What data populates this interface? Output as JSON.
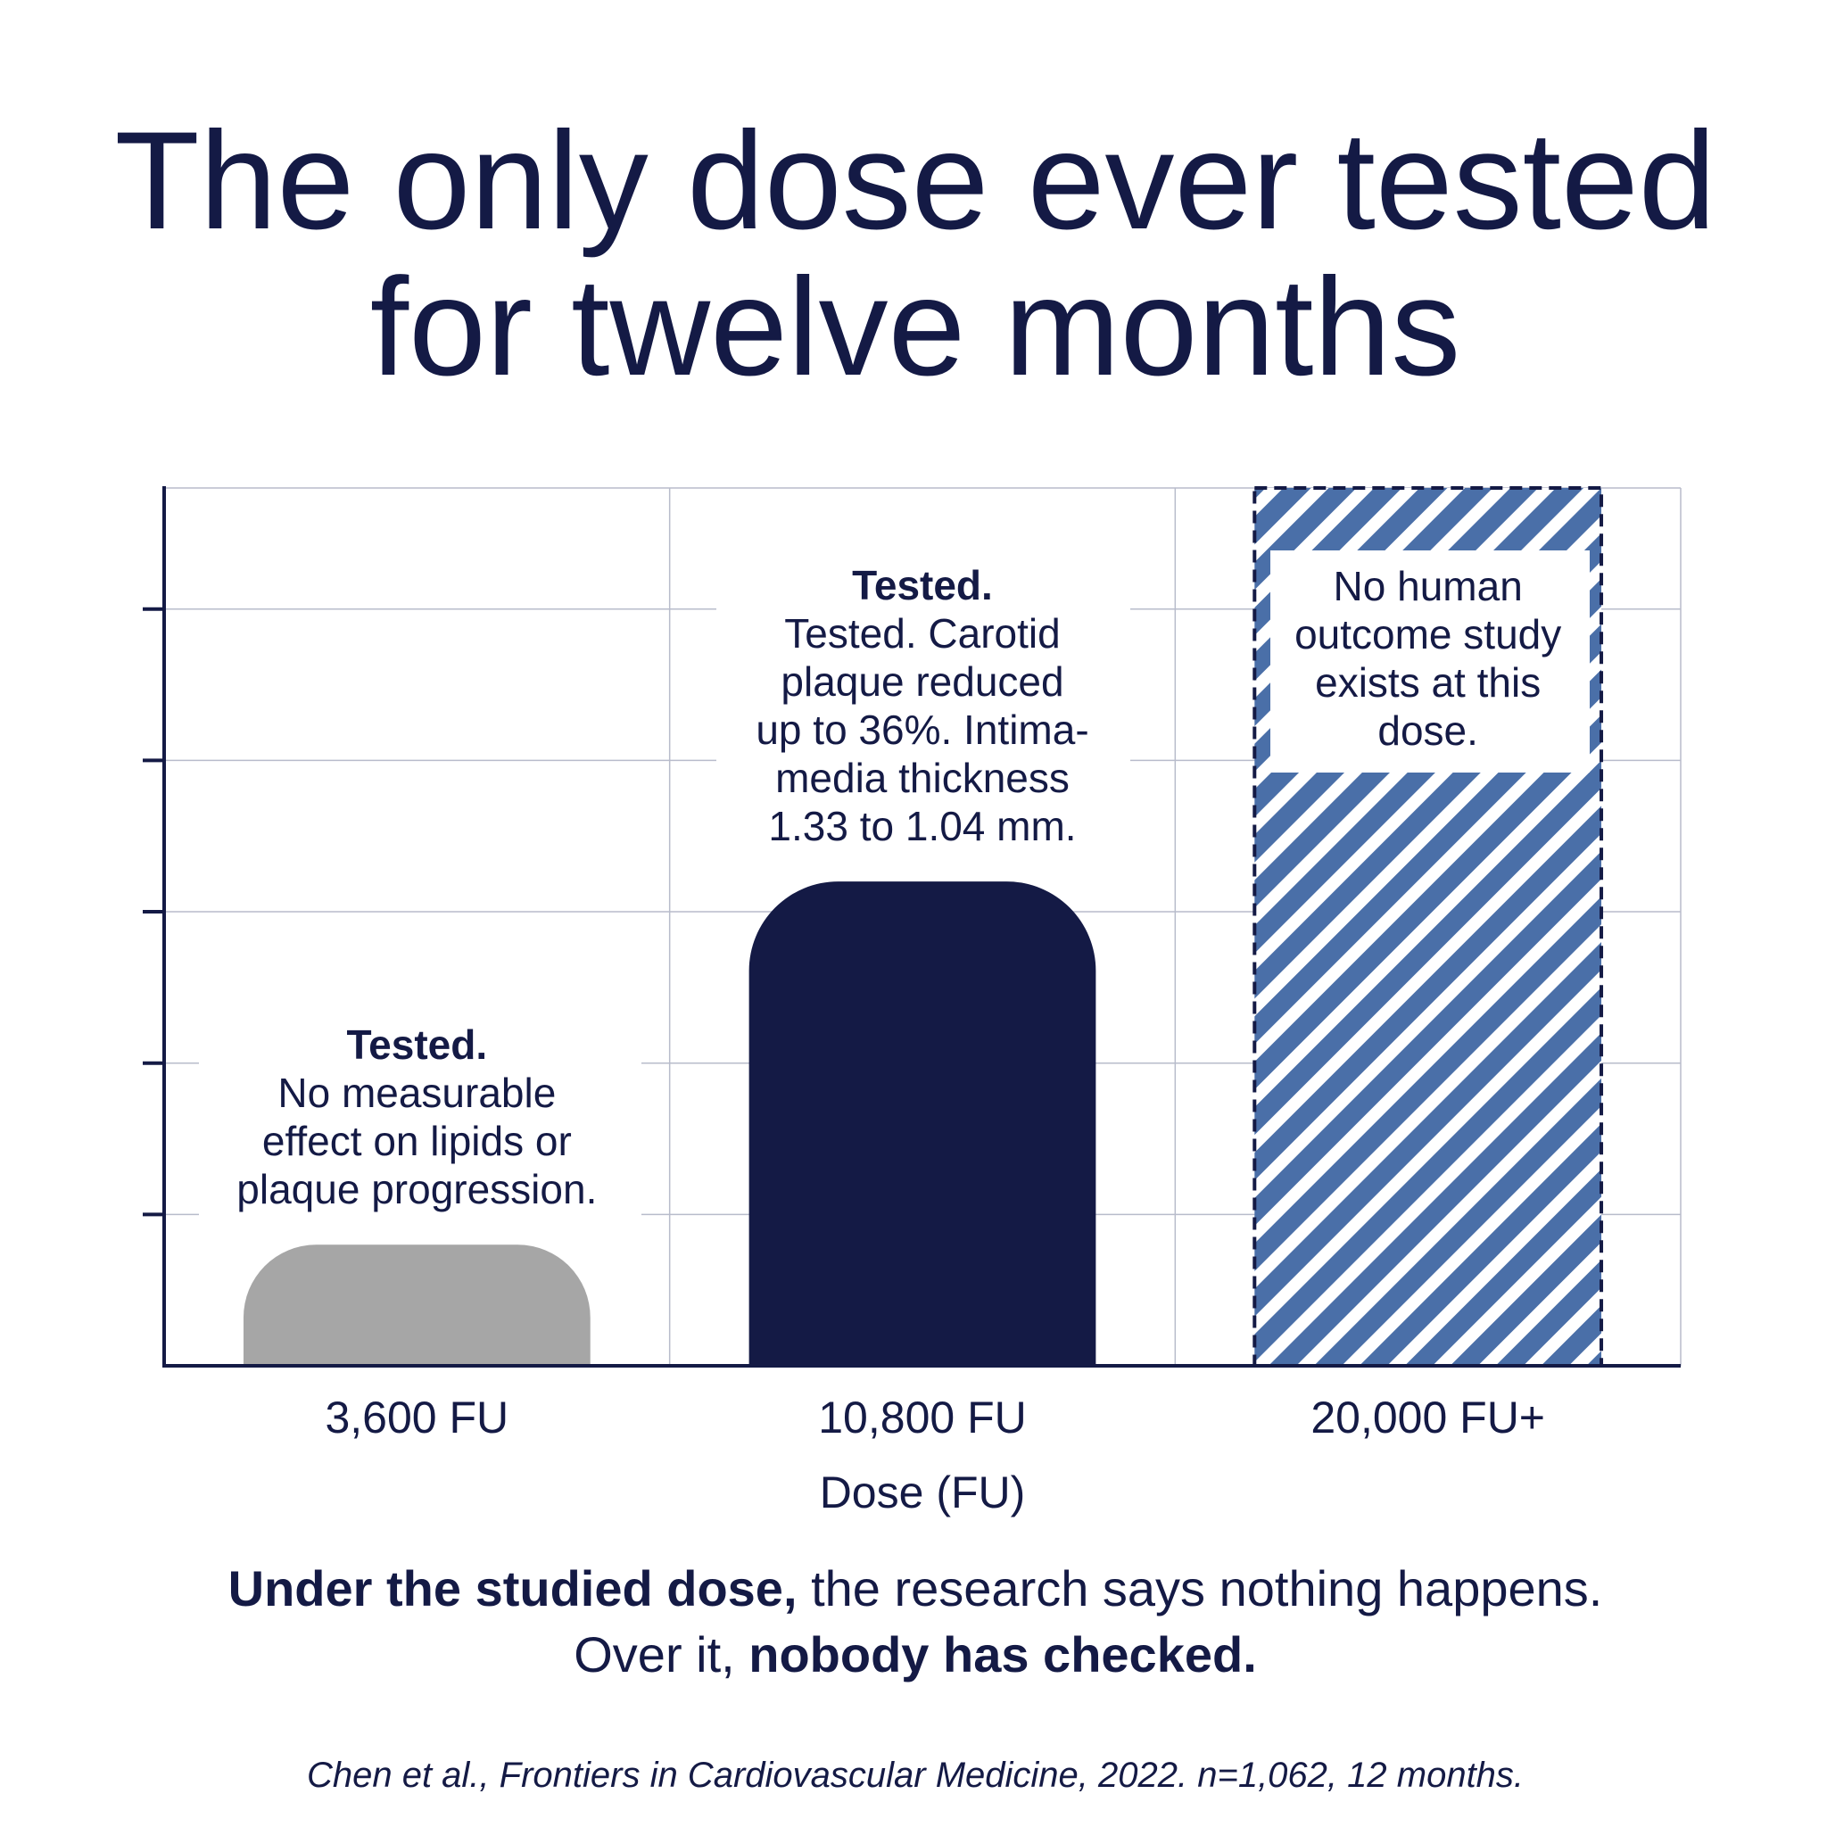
{
  "chart_data": {
    "type": "bar",
    "title": [
      "The only dose ever tested",
      "for twelve months"
    ],
    "categories": [
      "3,600 FU",
      "10,800 FU",
      "20,000 FU+"
    ],
    "x_label": "Dose (FU)",
    "values": [
      0.8,
      3.2,
      5.8
    ],
    "colors": [
      "#a6a6a6",
      "#141a45",
      "#4a6fa8"
    ],
    "patterns": [
      "solid",
      "solid",
      "hatched"
    ],
    "ylim": [
      0,
      5.8
    ],
    "yticks": [
      1,
      2,
      3,
      4,
      5
    ],
    "grid": true,
    "annotations": [
      {
        "heading": "Tested.",
        "lines": [
          "No measurable",
          "effect on lipids or",
          "plaque progression."
        ]
      },
      {
        "heading": "Tested.",
        "lines": [
          "Tested. Carotid",
          "plaque reduced",
          "up to 36%. Intima-",
          "media thickness",
          "1.33 to 1.04 mm."
        ]
      },
      {
        "lines": [
          "No human",
          "outcome study",
          "exists at this",
          "dose."
        ]
      }
    ],
    "footer": [
      [
        {
          "text": "Under the studied dose,",
          "bold": true
        },
        {
          "text": " the research says nothing happens.",
          "bold": false
        }
      ],
      [
        {
          "text": "Over it, ",
          "bold": false
        },
        {
          "text": "nobody has checked.",
          "bold": true
        }
      ]
    ],
    "citation": "Chen et al., Frontiers in Cardiovascular Medicine, 2022. n=1,062, 12 months."
  }
}
